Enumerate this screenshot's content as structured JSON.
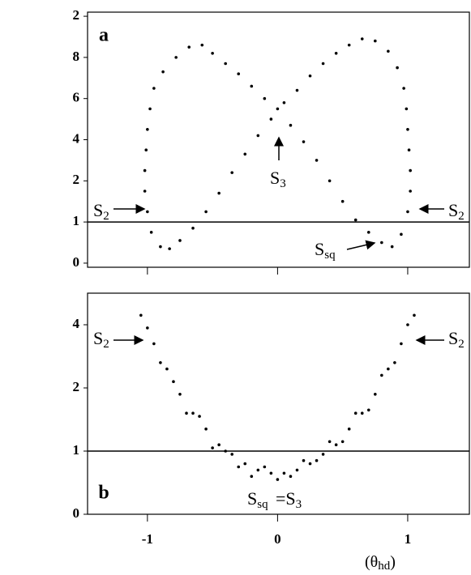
{
  "chart_data": [
    {
      "type": "scatter",
      "panel_label": "a",
      "color": "#000000",
      "hline": 1,
      "xlim": [
        -1.46,
        1.48
      ],
      "xticks": [
        -1,
        0,
        1
      ],
      "ylim": [
        0.78,
        2.02
      ],
      "yticks": [
        {
          "value": 0.8,
          "label": "0"
        },
        1,
        {
          "value": 1.2,
          "label": "2"
        },
        {
          "value": 1.4,
          "label": "4"
        },
        {
          "value": 1.6,
          "label": "6"
        },
        {
          "value": 1.8,
          "label": "8"
        },
        2
      ],
      "annotations": [
        {
          "text": "S",
          "sub": "2"
        },
        {
          "text": "S",
          "sub": "3"
        },
        {
          "text": "S",
          "sub": "2"
        },
        {
          "text": "S",
          "sub": "sq"
        }
      ],
      "x": [
        -0.9,
        -0.97,
        -1.0,
        -1.02,
        -1.02,
        -1.01,
        -1.0,
        -0.98,
        -0.95,
        -0.88,
        -0.78,
        -0.68,
        -0.58,
        -0.5,
        -0.4,
        -0.3,
        -0.2,
        -0.1,
        0.0,
        0.1,
        0.2,
        0.3,
        0.4,
        0.5,
        0.6,
        0.7,
        0.8,
        0.88,
        0.95,
        1.0,
        1.02,
        1.02,
        1.01,
        1.0,
        0.99,
        0.97,
        0.92,
        0.85,
        0.75,
        0.65,
        0.55,
        0.45,
        0.35,
        0.25,
        0.15,
        0.05,
        -0.05,
        -0.15,
        -0.25,
        -0.35,
        -0.45,
        -0.55,
        -0.65,
        -0.75,
        -0.83
      ],
      "y": [
        0.88,
        0.95,
        1.05,
        1.15,
        1.25,
        1.35,
        1.45,
        1.55,
        1.65,
        1.73,
        1.8,
        1.85,
        1.86,
        1.82,
        1.77,
        1.72,
        1.66,
        1.6,
        1.55,
        1.47,
        1.39,
        1.3,
        1.2,
        1.1,
        1.01,
        0.95,
        0.9,
        0.88,
        0.94,
        1.05,
        1.15,
        1.25,
        1.35,
        1.45,
        1.55,
        1.65,
        1.75,
        1.83,
        1.88,
        1.89,
        1.86,
        1.82,
        1.77,
        1.71,
        1.64,
        1.58,
        1.5,
        1.42,
        1.33,
        1.24,
        1.14,
        1.05,
        0.97,
        0.91,
        0.87
      ]
    },
    {
      "type": "scatter",
      "panel_label": "b",
      "color": "#000000",
      "hline": 1,
      "xlim": [
        -1.46,
        1.48
      ],
      "xticks": [
        -1,
        0,
        1
      ],
      "ylim": [
        0.8,
        1.5
      ],
      "yticks": [
        {
          "value": 0.8,
          "label": "0"
        },
        1,
        {
          "value": 1.2,
          "label": "2"
        },
        {
          "value": 1.4,
          "label": "4"
        }
      ],
      "annotations": [
        {
          "text": "S",
          "sub": "2"
        },
        {
          "text": "S",
          "sub": "2"
        },
        {
          "text": "S",
          "sub": "sq"
        },
        {
          "text": "=S",
          "sub": "3"
        }
      ],
      "x_label": "(θ",
      "x_label_sub": "hd",
      "x_label_end": ")",
      "x": [
        -1.05,
        -0.95,
        -0.85,
        -0.75,
        -0.65,
        -0.55,
        -0.45,
        -0.35,
        -0.25,
        -0.15,
        -0.05,
        0.05,
        0.15,
        0.25,
        0.35,
        0.45,
        0.55,
        0.65,
        0.75,
        0.85,
        0.95,
        1.05,
        -1.0,
        -0.9,
        -0.8,
        -0.7,
        -0.6,
        -0.5,
        -0.4,
        -0.3,
        -0.2,
        -0.1,
        0.0,
        0.1,
        0.2,
        0.3,
        0.4,
        0.5,
        0.6,
        0.7,
        0.8,
        0.9,
        1.0
      ],
      "y": [
        1.43,
        1.34,
        1.26,
        1.18,
        1.12,
        1.07,
        1.02,
        0.99,
        0.96,
        0.94,
        0.93,
        0.93,
        0.94,
        0.96,
        0.99,
        1.02,
        1.07,
        1.12,
        1.18,
        1.26,
        1.34,
        1.43,
        1.39,
        1.28,
        1.22,
        1.12,
        1.11,
        1.01,
        1.0,
        0.95,
        0.92,
        0.95,
        0.91,
        0.92,
        0.97,
        0.97,
        1.03,
        1.03,
        1.12,
        1.13,
        1.24,
        1.28,
        1.4
      ]
    }
  ]
}
